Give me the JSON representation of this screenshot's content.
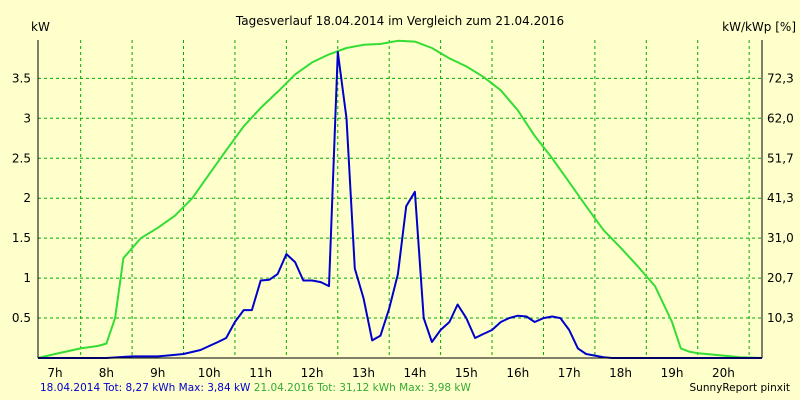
{
  "chart_data": {
    "type": "line",
    "title": "Tagesverlauf 18.04.2014 im Vergleich zum 21.04.2016",
    "y_left_unit": "kW",
    "y_right_unit": "kW/kWp [%]",
    "x_ticks": [
      "7h",
      "8h",
      "9h",
      "10h",
      "11h",
      "12h",
      "13h",
      "14h",
      "15h",
      "16h",
      "17h",
      "18h",
      "19h",
      "20h"
    ],
    "y_left_ticks": [
      "0.5",
      "1",
      "1.5",
      "2",
      "2.5",
      "3",
      "3.5"
    ],
    "y_right_ticks": [
      "10,3",
      "20,7",
      "31,0",
      "41,3",
      "51,7",
      "62,0",
      "72,3"
    ],
    "xlim": [
      6.67,
      20.75
    ],
    "ylim": [
      0,
      3.98
    ],
    "grid": true,
    "colors": {
      "background": "#ffffcc",
      "grid": "#00aa00",
      "series_2014": "#0000cc",
      "series_2016": "#33dd33"
    },
    "series": [
      {
        "name": "18.04.2014",
        "x": [
          6.67,
          7.5,
          8.0,
          8.5,
          9.0,
          9.17,
          9.5,
          9.83,
          10.0,
          10.17,
          10.33,
          10.5,
          10.67,
          10.83,
          11.0,
          11.17,
          11.33,
          11.5,
          11.67,
          11.83,
          12.0,
          12.17,
          12.33,
          12.5,
          12.67,
          12.83,
          13.0,
          13.17,
          13.33,
          13.5,
          13.67,
          13.83,
          14.0,
          14.17,
          14.33,
          14.5,
          14.67,
          14.83,
          15.0,
          15.17,
          15.33,
          15.5,
          15.67,
          15.83,
          16.0,
          16.17,
          16.33,
          16.5,
          16.67,
          16.83,
          17.0,
          17.17,
          17.33,
          17.5,
          17.67,
          17.83,
          18.0,
          18.17,
          18.33,
          18.5,
          18.67,
          18.83,
          19.0,
          19.17,
          19.33,
          19.5,
          19.67,
          20.0,
          20.33,
          20.75
        ],
        "y": [
          0,
          0,
          0,
          0.02,
          0.02,
          0.03,
          0.05,
          0.1,
          0.15,
          0.2,
          0.25,
          0.45,
          0.6,
          0.6,
          0.97,
          0.98,
          1.05,
          1.3,
          1.2,
          0.97,
          0.97,
          0.95,
          0.9,
          3.83,
          3.0,
          1.12,
          0.75,
          0.22,
          0.28,
          0.62,
          1.05,
          1.9,
          2.08,
          0.5,
          0.2,
          0.35,
          0.45,
          0.67,
          0.5,
          0.25,
          0.3,
          0.35,
          0.45,
          0.5,
          0.53,
          0.52,
          0.45,
          0.5,
          0.52,
          0.5,
          0.35,
          0.12,
          0.05,
          0.03,
          0.01,
          0,
          0,
          0,
          0,
          0,
          0,
          0,
          0,
          0,
          0,
          0,
          0,
          0,
          0,
          0
        ]
      },
      {
        "name": "21.04.2016",
        "x": [
          6.67,
          7.0,
          7.5,
          7.83,
          8.0,
          8.17,
          8.33,
          8.67,
          9.0,
          9.33,
          9.67,
          10.0,
          10.33,
          10.67,
          11.0,
          11.33,
          11.67,
          12.0,
          12.33,
          12.67,
          13.0,
          13.33,
          13.5,
          13.67,
          14.0,
          14.33,
          14.67,
          15.0,
          15.33,
          15.67,
          16.0,
          16.33,
          16.67,
          17.0,
          17.33,
          17.67,
          18.0,
          18.33,
          18.67,
          19.0,
          19.17,
          19.33,
          19.5,
          19.67,
          20.0,
          20.33,
          20.75
        ],
        "y": [
          0,
          0.05,
          0.12,
          0.15,
          0.18,
          0.5,
          1.25,
          1.5,
          1.63,
          1.78,
          2.0,
          2.3,
          2.6,
          2.9,
          3.13,
          3.33,
          3.55,
          3.7,
          3.8,
          3.88,
          3.92,
          3.93,
          3.95,
          3.97,
          3.96,
          3.88,
          3.75,
          3.65,
          3.52,
          3.35,
          3.1,
          2.78,
          2.5,
          2.2,
          1.9,
          1.6,
          1.38,
          1.15,
          0.9,
          0.45,
          0.12,
          0.08,
          0.06,
          0.05,
          0.03,
          0.01,
          0
        ]
      }
    ]
  },
  "footer": {
    "label_2014": "18.04.2014 Tot: 8,27 kWh Max: 3,84 kW",
    "label_2016": "21.04.2016 Tot: 31,12 kWh Max: 3,98 kW",
    "credit": "SunnyReport pinxit"
  }
}
